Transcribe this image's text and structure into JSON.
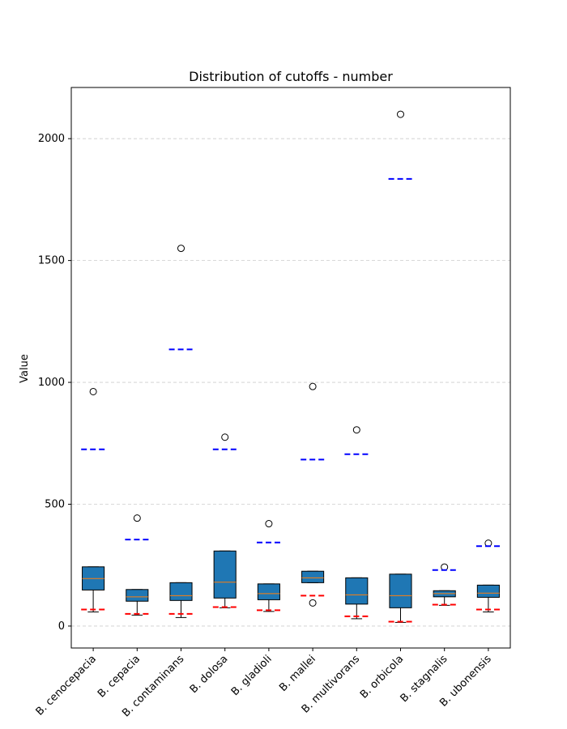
{
  "chart_data": {
    "type": "box",
    "title": "Distribution of cutoffs - number",
    "xlabel": "",
    "ylabel": "Value",
    "ylim": [
      -90,
      2210
    ],
    "yticks": [
      0,
      500,
      1000,
      1500,
      2000
    ],
    "grid": "horizontal dashed",
    "colors": {
      "box_fill": "#1f77b4",
      "median": "#ff7f0e",
      "upper_dash": "#0000ff",
      "lower_dash": "#ff0000",
      "grid": "#cccccc"
    },
    "categories": [
      "B. cenocepacia",
      "B. cepacia",
      "B. contaminans",
      "B. dolosa",
      "B. gladioli",
      "B. mallei",
      "B. multivorans",
      "B. orbicola",
      "B. stagnalis",
      "B. ubonensis"
    ],
    "boxes": [
      {
        "whisker_low": 58,
        "q1": 148,
        "median": 195,
        "q3": 243,
        "whisker_high": 243,
        "outliers": [
          962
        ],
        "upper_line": 725,
        "lower_line": 68
      },
      {
        "whisker_low": 45,
        "q1": 102,
        "median": 120,
        "q3": 150,
        "whisker_high": 150,
        "outliers": [
          443
        ],
        "upper_line": 355,
        "lower_line": 50
      },
      {
        "whisker_low": 35,
        "q1": 105,
        "median": 125,
        "q3": 178,
        "whisker_high": 178,
        "outliers": [
          1550
        ],
        "upper_line": 1135,
        "lower_line": 50
      },
      {
        "whisker_low": 75,
        "q1": 115,
        "median": 180,
        "q3": 308,
        "whisker_high": 308,
        "outliers": [
          775
        ],
        "upper_line": 725,
        "lower_line": 78
      },
      {
        "whisker_low": 60,
        "q1": 108,
        "median": 133,
        "q3": 173,
        "whisker_high": 173,
        "outliers": [
          420
        ],
        "upper_line": 343,
        "lower_line": 65
      },
      {
        "whisker_low": 178,
        "q1": 178,
        "median": 198,
        "q3": 225,
        "whisker_high": 225,
        "outliers": [
          983,
          95
        ],
        "upper_line": 683,
        "lower_line": 125
      },
      {
        "whisker_low": 30,
        "q1": 90,
        "median": 128,
        "q3": 198,
        "whisker_high": 198,
        "outliers": [
          805
        ],
        "upper_line": 705,
        "lower_line": 40
      },
      {
        "whisker_low": 15,
        "q1": 75,
        "median": 125,
        "q3": 213,
        "whisker_high": 213,
        "outliers": [
          2100
        ],
        "upper_line": 1835,
        "lower_line": 18
      },
      {
        "whisker_low": 85,
        "q1": 120,
        "median": 133,
        "q3": 145,
        "whisker_high": 145,
        "outliers": [
          242
        ],
        "upper_line": 230,
        "lower_line": 88
      },
      {
        "whisker_low": 58,
        "q1": 118,
        "median": 135,
        "q3": 168,
        "whisker_high": 168,
        "outliers": [
          340
        ],
        "upper_line": 328,
        "lower_line": 68
      }
    ]
  }
}
